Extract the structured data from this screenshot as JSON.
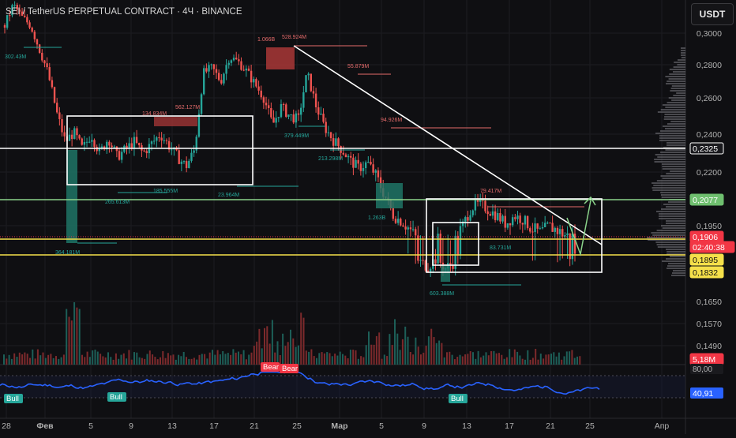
{
  "title": "SEI / TetherUS PERPETUAL CONTRACT · 4Ч · BINANCE",
  "currency_button": "USDT",
  "colors": {
    "background": "#0f0f12",
    "up": "#26a69a",
    "down": "#ef5350",
    "rsi_line": "#2962ff",
    "white_lines": "#ffffff",
    "green_line": "#8bd48b",
    "yellow_line": "#f5e04a"
  },
  "price_axis": {
    "ticks": [
      "0,3000",
      "0,2800",
      "0,2600",
      "0,2400",
      "0,2200",
      "0,1950",
      "0,1650",
      "0,1570",
      "0,1490"
    ],
    "labels": [
      {
        "name": "level-2325",
        "value": 0.2325,
        "text": "0,2325",
        "bg": "#1a1a1e",
        "fg": "#ffffff",
        "border": "#ffffff"
      },
      {
        "name": "level-2077",
        "value": 0.2077,
        "text": "0,2077",
        "bg": "#6fbf6f",
        "fg": "#ffffff",
        "border": "#6fbf6f"
      },
      {
        "name": "level-1906",
        "value": 0.1906,
        "text": "0,1906",
        "bg": "#f23645",
        "fg": "#ffffff",
        "border": "#f23645"
      },
      {
        "name": "countdown",
        "value": 0,
        "text": "02:40:38",
        "bg": "#f23645",
        "fg": "#ffffff",
        "border": "#f23645"
      },
      {
        "name": "level-1895",
        "value": 0.1895,
        "text": "0,1895",
        "bg": "#f5e04a",
        "fg": "#111111",
        "border": "#f5e04a"
      },
      {
        "name": "level-1832",
        "value": 0.1832,
        "text": "0,1832",
        "bg": "#f5e04a",
        "fg": "#111111",
        "border": "#f5e04a"
      },
      {
        "name": "volume-label",
        "value": 0,
        "text": "5,18M",
        "bg": "#f23645",
        "fg": "#ffffff",
        "border": "#f23645"
      }
    ]
  },
  "time_axis": [
    "28",
    "Фев",
    "5",
    "9",
    "13",
    "17",
    "21",
    "25",
    "Мар",
    "5",
    "9",
    "13",
    "17",
    "21",
    "25",
    "Апр"
  ],
  "volume_annotations": [
    "302.43M",
    "1.066B",
    "528.924M",
    "55.879M",
    "562.127M",
    "134.834M",
    "379.449M",
    "213.298M",
    "94.926M",
    "185.555M",
    "265.613M",
    "23.964M",
    "1.263B",
    "79.417M",
    "83.731M",
    "364.181M",
    "603.388M"
  ],
  "rsi": {
    "value_text": "40,91",
    "upper_text": "80,00",
    "signals": [
      "Bull",
      "Bull",
      "Bull",
      "Bear",
      "Bear"
    ]
  },
  "chart_data": [
    {
      "type": "candlestick",
      "title": "SEI / TetherUS PERPETUAL CONTRACT · 4Ч · BINANCE",
      "x_ticks": [
        "28",
        "Фев",
        "5",
        "9",
        "13",
        "17",
        "21",
        "25",
        "Мар",
        "5",
        "9",
        "13",
        "17",
        "21",
        "25",
        "Апр"
      ],
      "y_ticks": [
        "0,3000",
        "0,2800",
        "0,2600",
        "0,2400",
        "0,2200",
        "0,1950",
        "0,1650",
        "0,1570",
        "0,1490"
      ],
      "last_price": 0.1906,
      "horizontal_levels": [
        0.2325,
        0.2077,
        0.1906,
        0.1895,
        0.1832
      ],
      "ranges": [
        {
          "label": "consolidation-1",
          "high": 0.25,
          "low": 0.211
        },
        {
          "label": "consolidation-2",
          "high": 0.2077,
          "low": 0.181
        }
      ],
      "close_path": [
        0.305,
        0.318,
        0.31,
        0.305,
        0.29,
        0.275,
        0.252,
        0.236,
        0.241,
        0.232,
        0.24,
        0.23,
        0.238,
        0.228,
        0.232,
        0.236,
        0.23,
        0.235,
        0.24,
        0.234,
        0.228,
        0.223,
        0.232,
        0.275,
        0.278,
        0.27,
        0.285,
        0.282,
        0.276,
        0.268,
        0.26,
        0.245,
        0.255,
        0.25,
        0.248,
        0.275,
        0.256,
        0.244,
        0.237,
        0.232,
        0.226,
        0.222,
        0.225,
        0.218,
        0.21,
        0.2,
        0.197,
        0.193,
        0.188,
        0.186,
        0.19,
        0.185,
        0.188,
        0.195,
        0.204,
        0.206,
        0.203,
        0.2,
        0.196,
        0.2,
        0.198,
        0.194,
        0.192,
        0.195,
        0.193,
        0.191,
        0.1906
      ]
    },
    {
      "type": "line",
      "name": "RSI",
      "ylim": [
        0,
        100
      ],
      "last_value": 40.91,
      "upper_band": 80.0
    }
  ]
}
